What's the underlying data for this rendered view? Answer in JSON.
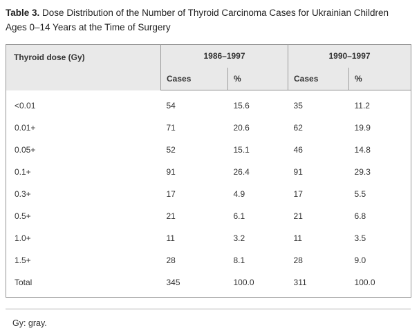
{
  "caption": {
    "label": "Table 3.",
    "text": "Dose Distribution of the Number of Thyroid Carcinoma Cases for Ukrainian Children Ages 0–14 Years at the Time of Surgery"
  },
  "table": {
    "col1_header": "Thyroid dose (Gy)",
    "groups": [
      "1986–1997",
      "1990–1997"
    ],
    "subheaders": [
      "Cases",
      "%",
      "Cases",
      "%"
    ],
    "rows": [
      {
        "dose": "<0.01",
        "cases_86": "54",
        "pct_86": "15.6",
        "cases_90": "35",
        "pct_90": "11.2"
      },
      {
        "dose": "0.01+",
        "cases_86": "71",
        "pct_86": "20.6",
        "cases_90": "62",
        "pct_90": "19.9"
      },
      {
        "dose": "0.05+",
        "cases_86": "52",
        "pct_86": "15.1",
        "cases_90": "46",
        "pct_90": "14.8"
      },
      {
        "dose": "0.1+",
        "cases_86": "91",
        "pct_86": "26.4",
        "cases_90": "91",
        "pct_90": "29.3"
      },
      {
        "dose": "0.3+",
        "cases_86": "17",
        "pct_86": "4.9",
        "cases_90": "17",
        "pct_90": "5.5"
      },
      {
        "dose": "0.5+",
        "cases_86": "21",
        "pct_86": "6.1",
        "cases_90": "21",
        "pct_90": "6.8"
      },
      {
        "dose": "1.0+",
        "cases_86": "11",
        "pct_86": "3.2",
        "cases_90": "11",
        "pct_90": "3.5"
      },
      {
        "dose": "1.5+",
        "cases_86": "28",
        "pct_86": "8.1",
        "cases_90": "28",
        "pct_90": "9.0"
      },
      {
        "dose": "Total",
        "cases_86": "345",
        "pct_86": "100.0",
        "cases_90": "311",
        "pct_90": "100.0"
      }
    ]
  },
  "footnote": "Gy: gray.",
  "colors": {
    "header_bg": "#e9e9e9",
    "table_border": "#949494",
    "header_line": "#9c9c9c",
    "header_bottom": "#8e8e8e",
    "footnote_divider": "#b0b0b0",
    "text": "#333333",
    "caption_text": "#222222"
  }
}
